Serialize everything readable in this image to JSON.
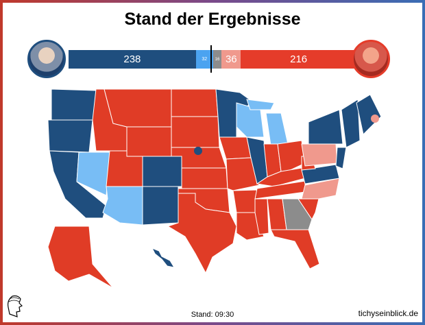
{
  "header": {
    "title": "Stand der Ergebnisse"
  },
  "results": {
    "segments": [
      {
        "label": "238",
        "value": 238,
        "color": "#1f4e7e",
        "name": "biden-secure"
      },
      {
        "label": "32",
        "value": 32,
        "color": "#4ba3f0",
        "name": "biden-leaning"
      },
      {
        "label": "16",
        "value": 16,
        "color": "#8c8c8c",
        "name": "undecided"
      },
      {
        "label": "36",
        "value": 36,
        "color": "#f0998d",
        "name": "trump-leaning"
      },
      {
        "label": "216",
        "value": 216,
        "color": "#e53c2a",
        "name": "trump-secure"
      }
    ]
  },
  "colors": {
    "dem": "#1f4e7e",
    "dem_lean": "#78bdf5",
    "tossup": "#8c8c8c",
    "rep_lean": "#f0998d",
    "rep": "#e03c26"
  },
  "states": {
    "WA": "dem",
    "OR": "dem",
    "CA": "dem",
    "NV": "dem_lean",
    "ID": "rep",
    "MT": "rep",
    "WY": "rep",
    "UT": "rep",
    "AZ": "dem_lean",
    "CO": "dem",
    "NM": "dem",
    "ND": "rep",
    "SD": "rep",
    "NE": "rep",
    "KS": "rep",
    "OK": "rep",
    "TX": "rep",
    "MN": "dem",
    "IA": "rep",
    "MO": "rep",
    "AR": "rep",
    "LA": "rep",
    "WI": "dem_lean",
    "MI": "dem_lean",
    "MIU": "dem_lean",
    "IL": "dem",
    "IN": "rep",
    "OH": "rep",
    "KY": "rep",
    "TN": "rep",
    "MS": "rep",
    "AL": "rep",
    "GA": "tossup",
    "FL": "rep",
    "SC": "rep",
    "NC": "rep_lean",
    "VA": "dem",
    "WV": "rep",
    "PA": "rep_lean",
    "NY": "dem",
    "NE_REG": "dem",
    "ME": "dem",
    "MID": "dem",
    "AK": "rep",
    "HI": "dem",
    "NE2": "dem",
    "ME2": "rep_lean"
  },
  "footer": {
    "stand": "Stand: 09:30",
    "site": "tichyseinblick.de"
  }
}
